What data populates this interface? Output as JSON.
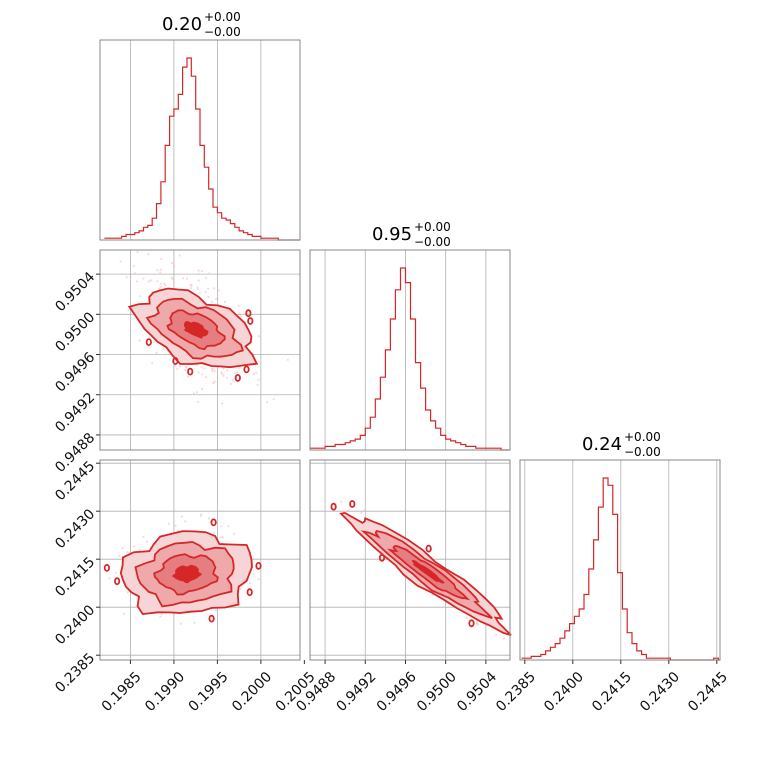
{
  "chart_data": {
    "type": "corner",
    "color": "#d62728",
    "parameters": [
      {
        "title_value": "0.20",
        "title_plus": "+0.00",
        "title_minus": "−0.00",
        "range": [
          0.19815,
          0.20045
        ],
        "ticks": [
          "0.1985",
          "0.1990",
          "0.1995",
          "0.2000",
          "0.2005"
        ],
        "hist_bin_edges_start": 0.1982,
        "hist_bin_width": 5e-05,
        "hist_counts": [
          1,
          1,
          1,
          1,
          2,
          3,
          3,
          4,
          5,
          7,
          8,
          12,
          20,
          32,
          52,
          68,
          72,
          80,
          95,
          100,
          90,
          72,
          52,
          40,
          28,
          18,
          15,
          12,
          11,
          9,
          7,
          5,
          4,
          3,
          2,
          2,
          1,
          1,
          1,
          1,
          0,
          0,
          0,
          0,
          0,
          0
        ]
      },
      {
        "title_value": "0.95",
        "title_plus": "+0.00",
        "title_minus": "−0.00",
        "range": [
          0.94865,
          0.95064
        ],
        "ticks": [
          "0.9488",
          "0.9492",
          "0.9496",
          "0.9500",
          "0.9504"
        ],
        "hist_bin_edges_start": 0.94865,
        "hist_bin_width": 5e-05,
        "hist_counts": [
          1,
          1,
          1,
          2,
          2,
          3,
          3,
          4,
          5,
          6,
          8,
          12,
          18,
          28,
          40,
          55,
          72,
          88,
          100,
          92,
          72,
          48,
          34,
          22,
          16,
          12,
          8,
          6,
          5,
          4,
          3,
          2,
          2,
          1,
          1,
          1,
          1,
          1,
          0,
          0
        ]
      },
      {
        "title_value": "0.24",
        "title_plus": "+0.00",
        "title_minus": "−0.00",
        "range": [
          0.23835,
          0.2446
        ],
        "ticks": [
          "0.2385",
          "0.2400",
          "0.2415",
          "0.2430",
          "0.2445"
        ],
        "hist_bin_edges_start": 0.2384,
        "hist_bin_width": 0.00015,
        "hist_counts": [
          1,
          1,
          2,
          2,
          3,
          5,
          7,
          9,
          12,
          16,
          20,
          24,
          28,
          36,
          50,
          66,
          84,
          100,
          96,
          80,
          48,
          28,
          15,
          9,
          5,
          3,
          1,
          1,
          1,
          1,
          1,
          0,
          0,
          0,
          0,
          0,
          0,
          0,
          0,
          0,
          1,
          0
        ]
      }
    ],
    "pair_means": {
      "1_0": {
        "x": 0.19925,
        "y": 0.94985
      },
      "2_0": {
        "x": 0.19915,
        "y": 0.24105
      },
      "2_1": {
        "x": 0.94982,
        "y": 0.2411
      }
    }
  }
}
